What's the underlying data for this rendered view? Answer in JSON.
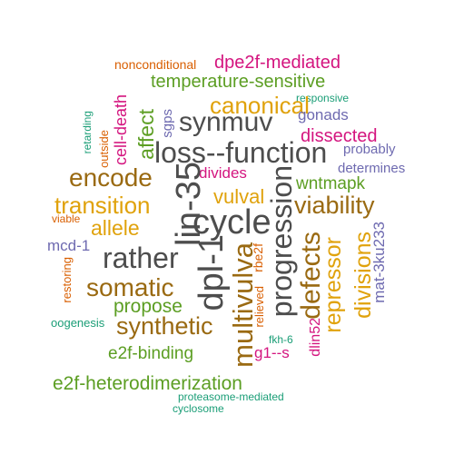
{
  "colors": {
    "gray": "#4d4d4d",
    "brown": "#9a6a12",
    "magenta": "#d4157f",
    "green": "#5c9e23",
    "gold": "#e0a20c",
    "purple": "#6e6ab0",
    "teal": "#1b9e77",
    "orange": "#d95f02"
  },
  "words": [
    {
      "text": "nonconditional",
      "color": "#d95f02"
    },
    {
      "text": "dpe2f-mediated",
      "color": "#d4157f"
    },
    {
      "text": "temperature-sensitive",
      "color": "#5c9e23"
    },
    {
      "text": "responsive",
      "color": "#1b9e77"
    },
    {
      "text": "cell-death",
      "color": "#d4157f"
    },
    {
      "text": "canonical",
      "color": "#e0a20c"
    },
    {
      "text": "gonads",
      "color": "#6e6ab0"
    },
    {
      "text": "retarding",
      "color": "#1b9e77"
    },
    {
      "text": "outside",
      "color": "#d95f02"
    },
    {
      "text": "affect",
      "color": "#5c9e23"
    },
    {
      "text": "sgps",
      "color": "#6e6ab0"
    },
    {
      "text": "synmuv",
      "color": "#4d4d4d"
    },
    {
      "text": "dissected",
      "color": "#d4157f"
    },
    {
      "text": "probably",
      "color": "#6e6ab0"
    },
    {
      "text": "loss--function",
      "color": "#4d4d4d"
    },
    {
      "text": "determines",
      "color": "#6e6ab0"
    },
    {
      "text": "encode",
      "color": "#9a6a12"
    },
    {
      "text": "divides",
      "color": "#d4157f"
    },
    {
      "text": "wntmapk",
      "color": "#5c9e23"
    },
    {
      "text": "lin-35",
      "color": "#4d4d4d"
    },
    {
      "text": "transition",
      "color": "#e0a20c"
    },
    {
      "text": "vulval",
      "color": "#e0a20c"
    },
    {
      "text": "viability",
      "color": "#9a6a12"
    },
    {
      "text": "viable",
      "color": "#d95f02"
    },
    {
      "text": "allele",
      "color": "#e0a20c"
    },
    {
      "text": "cycle",
      "color": "#4d4d4d"
    },
    {
      "text": "progression",
      "color": "#4d4d4d"
    },
    {
      "text": "mcd-1",
      "color": "#6e6ab0"
    },
    {
      "text": "rather",
      "color": "#4d4d4d"
    },
    {
      "text": "dpl-1",
      "color": "#4d4d4d"
    },
    {
      "text": "defects",
      "color": "#9a6a12"
    },
    {
      "text": "divisions",
      "color": "#e0a20c"
    },
    {
      "text": "mat-3ku233",
      "color": "#6e6ab0"
    },
    {
      "text": "restoring",
      "color": "#d95f02"
    },
    {
      "text": "somatic",
      "color": "#9a6a12"
    },
    {
      "text": "rbe2f",
      "color": "#d95f02"
    },
    {
      "text": "repressor",
      "color": "#e0a20c"
    },
    {
      "text": "propose",
      "color": "#5c9e23"
    },
    {
      "text": "relieved",
      "color": "#d95f02"
    },
    {
      "text": "multivulva",
      "color": "#9a6a12"
    },
    {
      "text": "oogenesis",
      "color": "#1b9e77"
    },
    {
      "text": "synthetic",
      "color": "#9a6a12"
    },
    {
      "text": "dlin52",
      "color": "#d4157f"
    },
    {
      "text": "fkh-6",
      "color": "#1b9e77"
    },
    {
      "text": "e2f-binding",
      "color": "#5c9e23"
    },
    {
      "text": "g1--s",
      "color": "#d4157f"
    },
    {
      "text": "e2f-heterodimerization",
      "color": "#5c9e23"
    },
    {
      "text": "proteasome-mediated",
      "color": "#1b9e77"
    },
    {
      "text": "cyclosome",
      "color": "#1b9e77"
    }
  ]
}
